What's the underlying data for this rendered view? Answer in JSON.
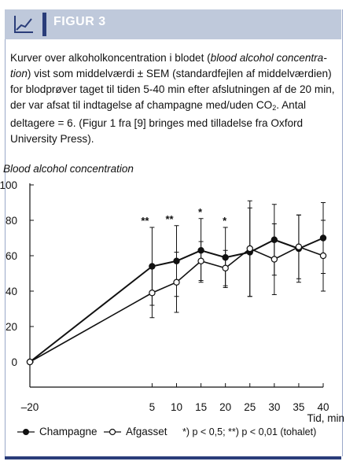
{
  "figure": {
    "label": "FIGUR 3",
    "caption_part1": "Kurver over alkoholkoncentration i blodet (",
    "caption_italic": "blood alcohol concentra-tion",
    "caption_part2": ") vist som middelværdi ± SEM (standardfejlen af middelværdien) for blodprøver taget til tiden 5-40 min efter afslutningen af de 20 min, der var afsat til indtagelse af champagne med/uden CO",
    "caption_sub": "2",
    "caption_part3": ". Antal deltagere = 6. (Figur 1 fra [9] bringes med tilladelse fra Oxford University Press)."
  },
  "chart_data": {
    "type": "line",
    "title": "",
    "ylabel": "Blood alcohol concentration",
    "xlabel": "Tid, min",
    "x": [
      -20,
      5,
      10,
      15,
      20,
      25,
      30,
      35,
      40
    ],
    "xticks": [
      "–20",
      "5",
      "10",
      "15",
      "20",
      "25",
      "30",
      "35",
      "40"
    ],
    "yticks": [
      "0",
      "20",
      "40",
      "60",
      "80",
      "100"
    ],
    "ylim": [
      0,
      100
    ],
    "grid": false,
    "series": [
      {
        "name": "Champagne",
        "marker": "filled",
        "values": [
          0,
          54,
          57,
          63,
          59,
          62,
          69,
          64,
          70
        ],
        "err": [
          0,
          22,
          20,
          18,
          17,
          25,
          20,
          19,
          20
        ]
      },
      {
        "name": "Afgasset",
        "marker": "open",
        "values": [
          0,
          39,
          45,
          57,
          53,
          64,
          58,
          65,
          60
        ],
        "err": [
          0,
          14,
          17,
          11,
          10,
          27,
          20,
          18,
          20
        ]
      }
    ],
    "annotations": [
      {
        "x": 5,
        "text": "**"
      },
      {
        "x": 10,
        "text": "**"
      },
      {
        "x": 15,
        "text": "*"
      },
      {
        "x": 20,
        "text": "*"
      }
    ],
    "legend": {
      "items": [
        "Champagne",
        "Afgasset"
      ],
      "note": "*) p < 0,5; **) p < 0,01 (tohalet)",
      "placement": "bottom"
    }
  }
}
